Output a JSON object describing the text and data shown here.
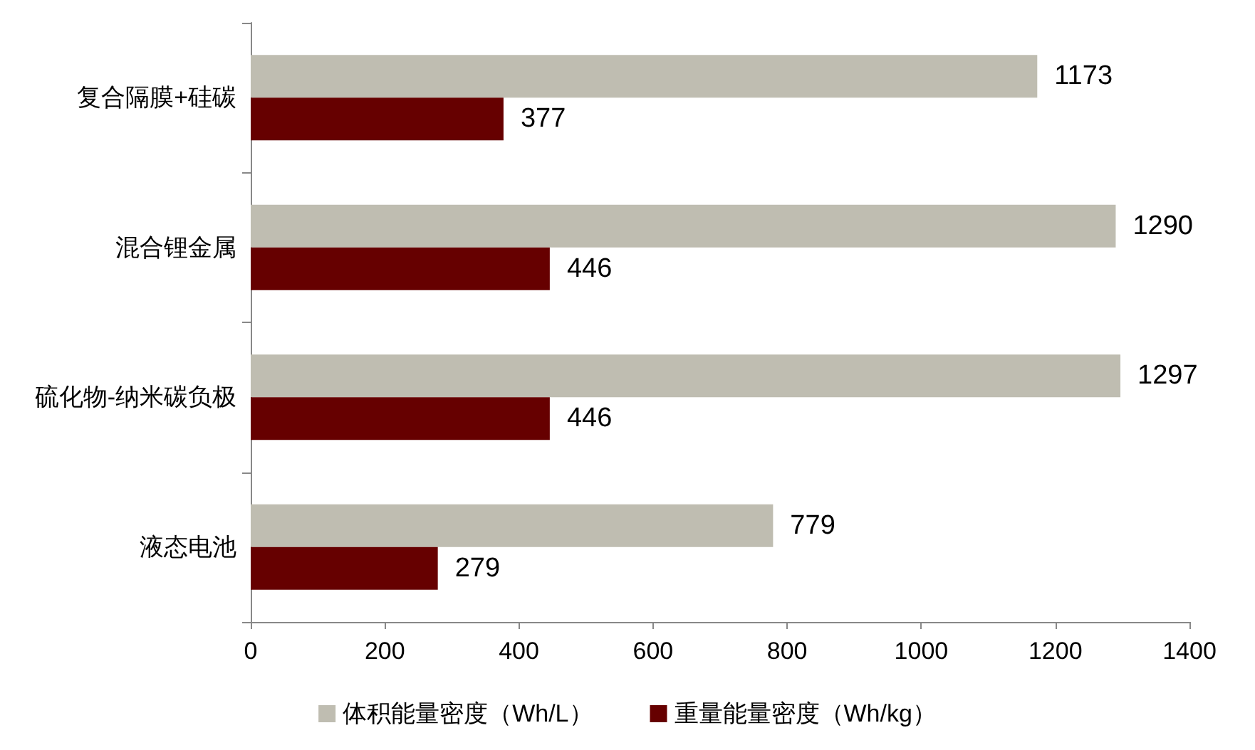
{
  "chart_data": {
    "type": "bar",
    "orientation": "horizontal",
    "categories": [
      "复合隔膜+硅碳",
      "混合锂金属",
      "硫化物-纳米碳负极",
      "液态电池"
    ],
    "series": [
      {
        "name": "体积能量密度（Wh/L）",
        "color": "#bfbdb1",
        "values": [
          1173,
          1290,
          1297,
          779
        ]
      },
      {
        "name": "重量能量密度（Wh/kg）",
        "color": "#660000",
        "values": [
          377,
          446,
          446,
          279
        ]
      }
    ],
    "xlim": [
      0,
      1400
    ],
    "xticks": [
      0,
      200,
      400,
      600,
      800,
      1000,
      1200,
      1400
    ],
    "data_labels": true,
    "grid": false,
    "legend": "bottom"
  }
}
